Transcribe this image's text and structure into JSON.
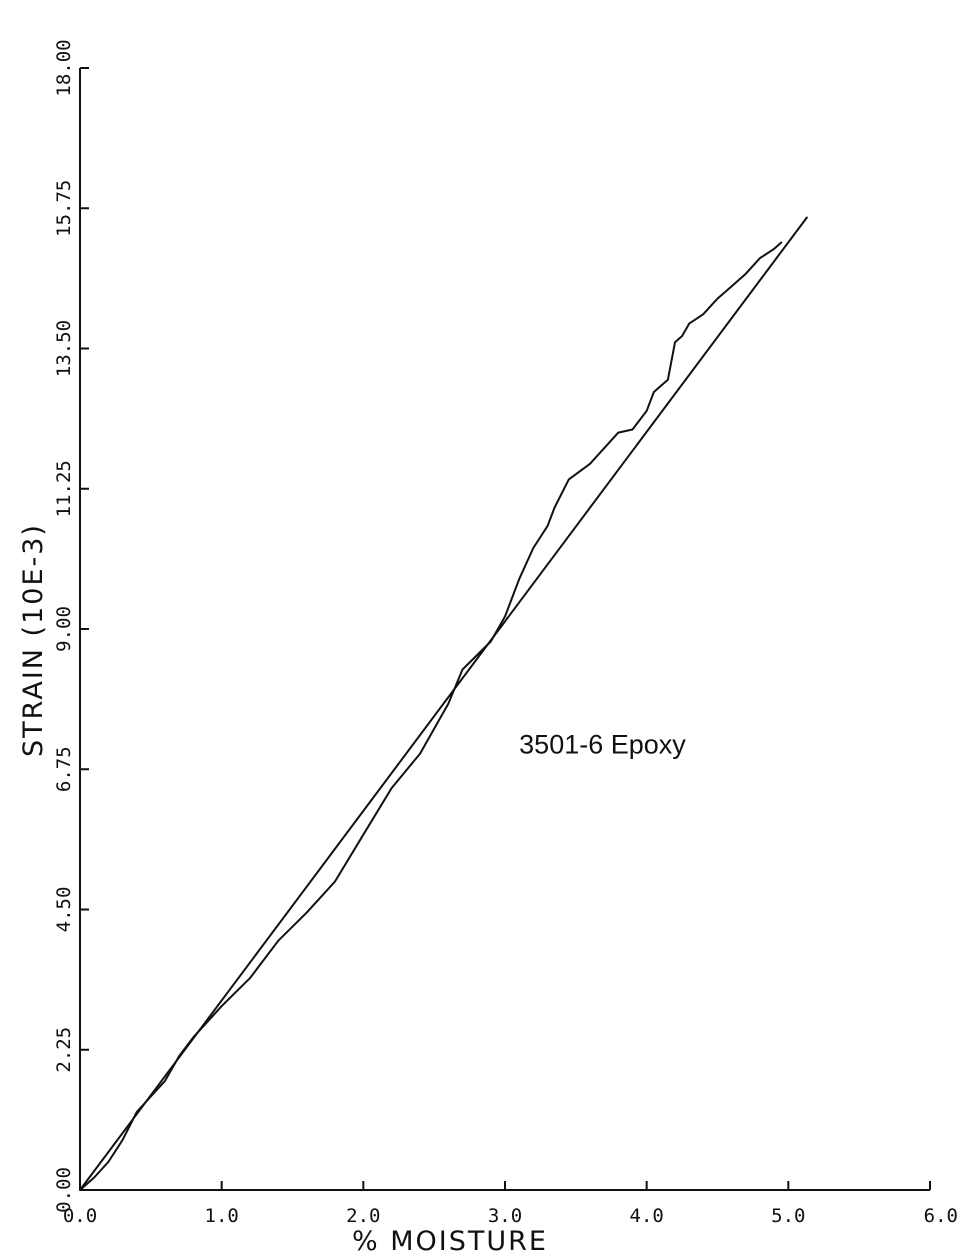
{
  "chart_data": {
    "type": "line",
    "title": "",
    "xlabel": "% MOISTURE",
    "ylabel": "STRAIN (10E-3)",
    "xlim": [
      0.0,
      6.0
    ],
    "ylim": [
      0.0,
      18.0
    ],
    "x_tick_labels": [
      "0.0",
      "1.0",
      "2.0",
      "3.0",
      "4.0",
      "5.0",
      "6.0"
    ],
    "y_tick_labels": [
      "0.00",
      "2.25",
      "4.50",
      "6.75",
      "9.00",
      "11.25",
      "13.50",
      "15.75",
      "18.00"
    ],
    "grid": false,
    "annotations": [
      {
        "text": "3501-6 Epoxy",
        "x": 3.1,
        "y": 7.0
      }
    ],
    "series": [
      {
        "x": [
          0.0,
          5.13
        ],
        "y": [
          0.0,
          15.6
        ]
      },
      {
        "x": [
          0.0,
          0.1,
          0.2,
          0.3,
          0.4,
          0.5,
          0.6,
          0.7,
          0.8,
          1.0,
          1.2,
          1.4,
          1.6,
          1.8,
          2.0,
          2.2,
          2.4,
          2.6,
          2.7,
          2.9,
          3.0,
          3.1,
          3.2,
          3.3,
          3.35,
          3.45,
          3.6,
          3.8,
          3.9,
          4.0,
          4.05,
          4.1,
          4.15,
          4.2,
          4.25,
          4.3,
          4.4,
          4.5,
          4.6,
          4.7,
          4.8,
          4.9,
          4.95
        ],
        "y": [
          0.0,
          0.2,
          0.45,
          0.8,
          1.25,
          1.5,
          1.75,
          2.15,
          2.45,
          2.95,
          3.4,
          4.0,
          4.45,
          4.95,
          5.7,
          6.45,
          7.0,
          7.8,
          8.35,
          8.8,
          9.2,
          9.8,
          10.3,
          10.65,
          10.95,
          11.4,
          11.65,
          12.15,
          12.2,
          12.5,
          12.8,
          12.9,
          13.0,
          13.6,
          13.7,
          13.9,
          14.05,
          14.3,
          14.5,
          14.7,
          14.95,
          15.1,
          15.2
        ]
      }
    ]
  }
}
